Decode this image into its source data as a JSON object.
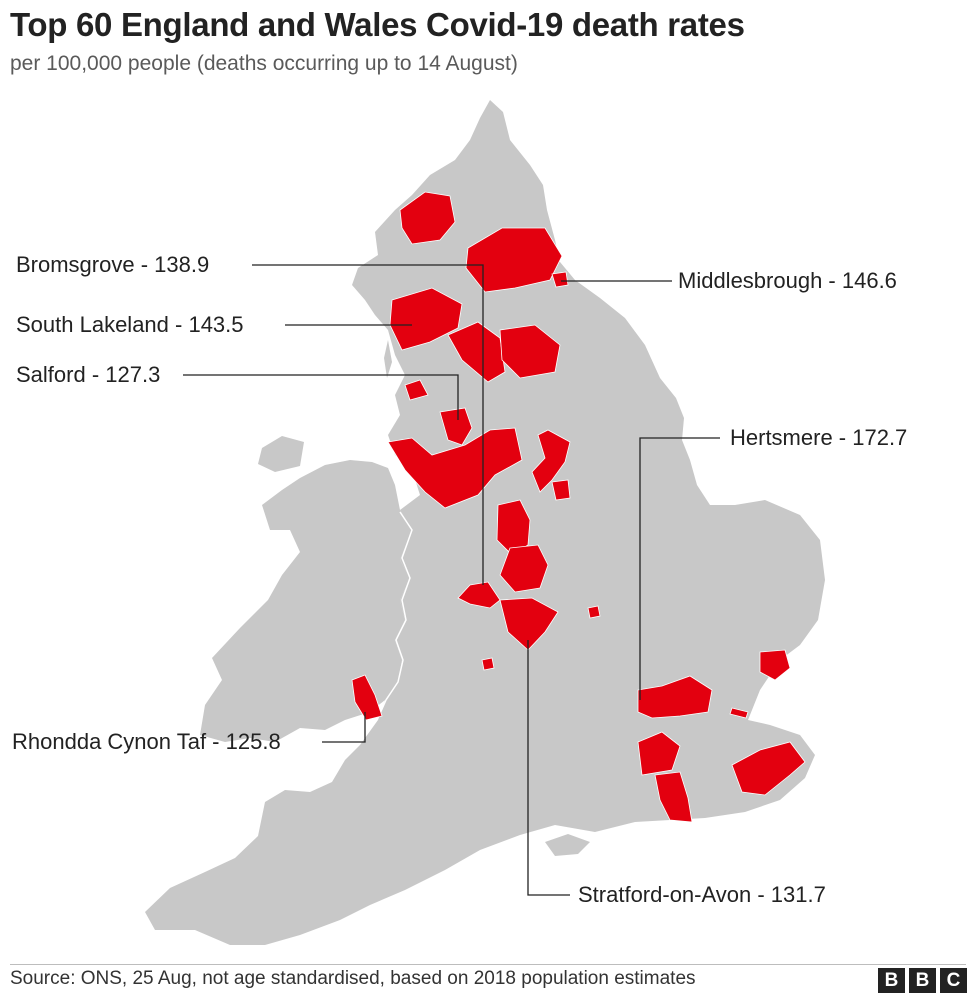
{
  "title": "Top 60 England and Wales Covid-19 death rates",
  "subtitle": "per 100,000 people (deaths occurring up to 14 August)",
  "colors": {
    "land": "#c8c8c8",
    "highlight": "#e3000f",
    "border": "#ffffff",
    "leader": "#222222"
  },
  "callouts": {
    "bromsgrove": "Bromsgrove - 138.9",
    "south_lakeland": "South Lakeland - 143.5",
    "salford": "Salford - 127.3",
    "rhondda": "Rhondda Cynon Taf - 125.8",
    "middlesbrough": "Middlesbrough - 146.6",
    "hertsmere": "Hertsmere - 172.7",
    "stratford": "Stratford-on-Avon - 131.7"
  },
  "source": "Source: ONS, 25 Aug, not age standardised, based on 2018 population estimates",
  "logo_letters": [
    "B",
    "B",
    "C"
  ]
}
